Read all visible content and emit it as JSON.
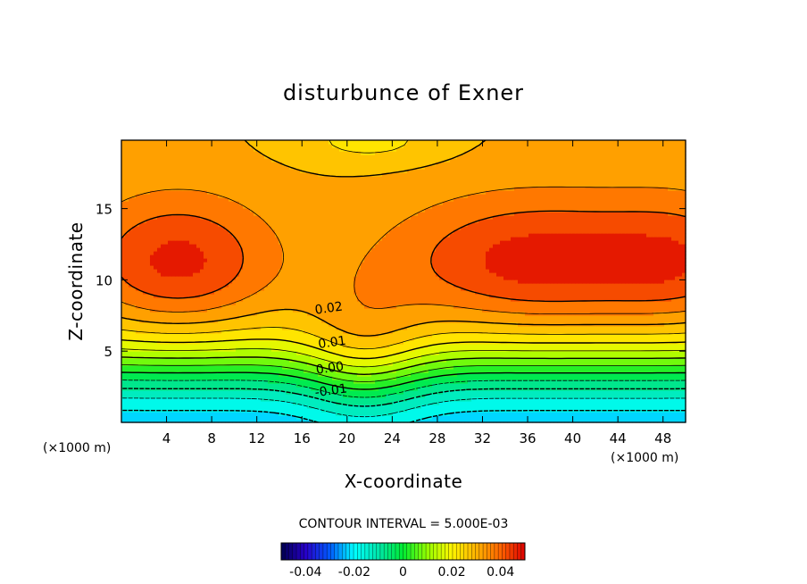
{
  "chart_data": {
    "type": "heatmap",
    "title": "disturbunce of Exner",
    "xlabel": "X-coordinate",
    "ylabel": "Z-coordinate",
    "x_unit": "(×1000 m)",
    "z_unit": "(×1000 m)",
    "xlim": [
      0,
      50
    ],
    "ylim": [
      0,
      19.8
    ],
    "x_ticks": [
      "4",
      "8",
      "12",
      "16",
      "20",
      "24",
      "28",
      "32",
      "36",
      "40",
      "44",
      "48"
    ],
    "y_ticks": [
      "5",
      "10",
      "15"
    ],
    "contour_interval_text": "CONTOUR INTERVAL = 5.000E-03",
    "contour_labels": [
      {
        "text": "0.02",
        "x": 17.2,
        "z": 7.6
      },
      {
        "text": "0.01",
        "x": 17.5,
        "z": 5.2
      },
      {
        "text": "0.00",
        "x": 17.3,
        "z": 3.4
      },
      {
        "text": "-0.01",
        "x": 17.2,
        "z": 1.8
      }
    ],
    "colorbar": {
      "min": -0.05,
      "max": 0.05,
      "ticks": [
        "-0.04",
        "-0.02",
        "0",
        "0.02",
        "0.04"
      ]
    },
    "field_range": [
      -0.02,
      0.037
    ],
    "colors": {
      "cyan": "#00ffff",
      "green": "#00ff00",
      "yellow": "#ffdd00",
      "orange": "#ff8c00"
    }
  }
}
